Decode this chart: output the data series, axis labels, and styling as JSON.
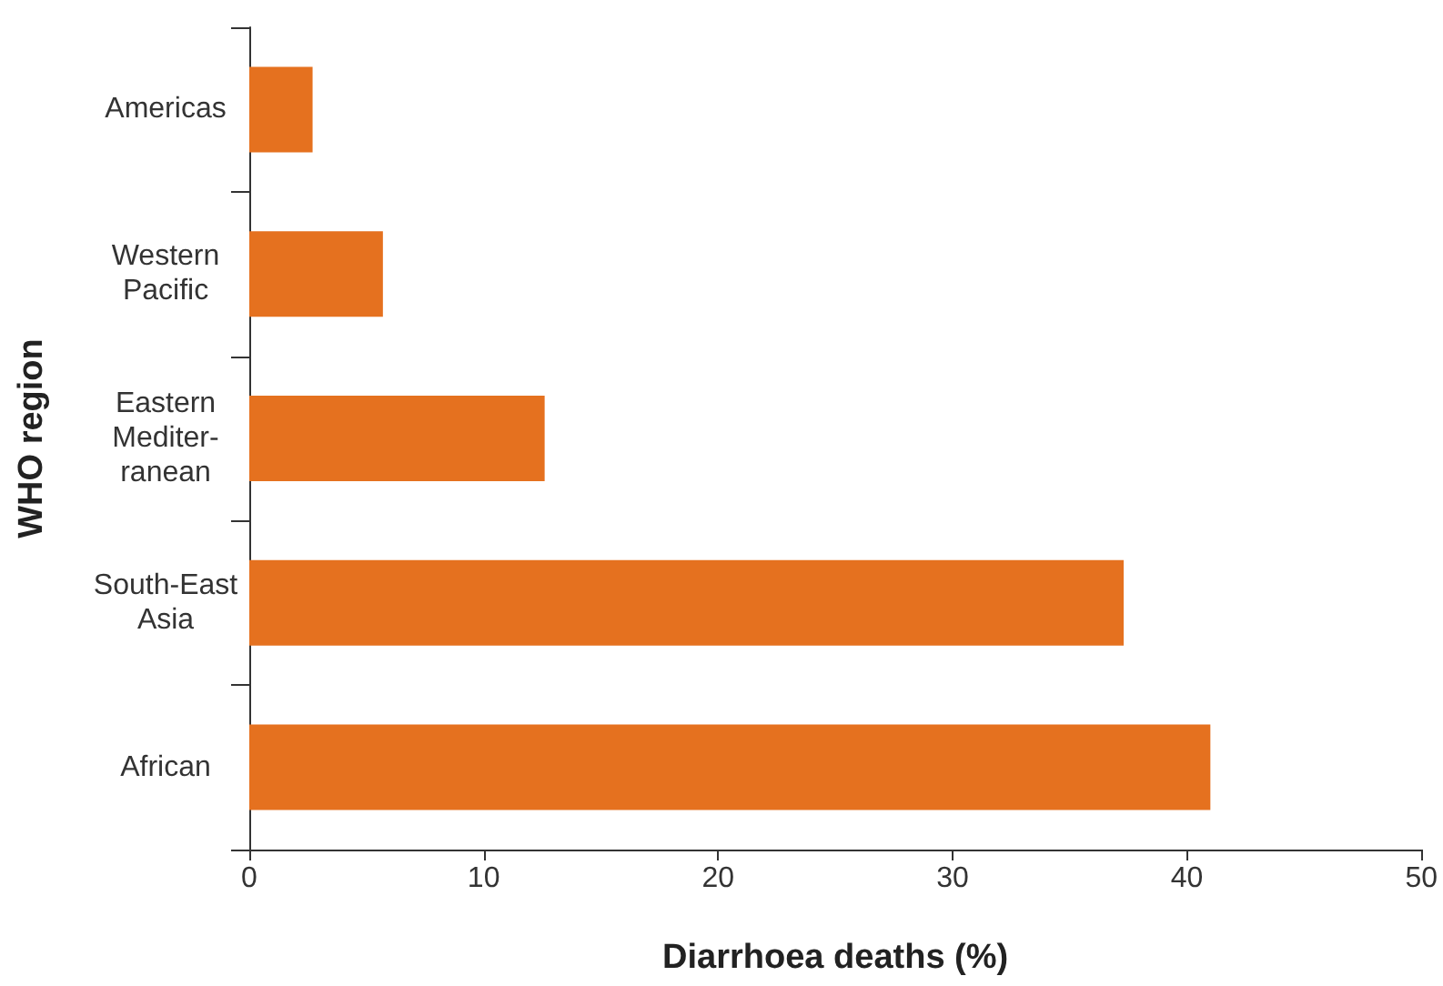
{
  "chart_data": {
    "type": "bar",
    "orientation": "horizontal",
    "xlabel": "Diarrhoea deaths (%)",
    "ylabel": "WHO region",
    "categories": [
      "Americas",
      "Western\nPacific",
      "Eastern\nMediter-\nranean",
      "South-East\nAsia",
      "African"
    ],
    "values": [
      2.7,
      5.7,
      12.6,
      37.3,
      41.0
    ],
    "color": "#e5711f",
    "xlim": [
      0,
      50
    ],
    "xticks": [
      0,
      10,
      20,
      30,
      40,
      50
    ],
    "grid": false
  }
}
